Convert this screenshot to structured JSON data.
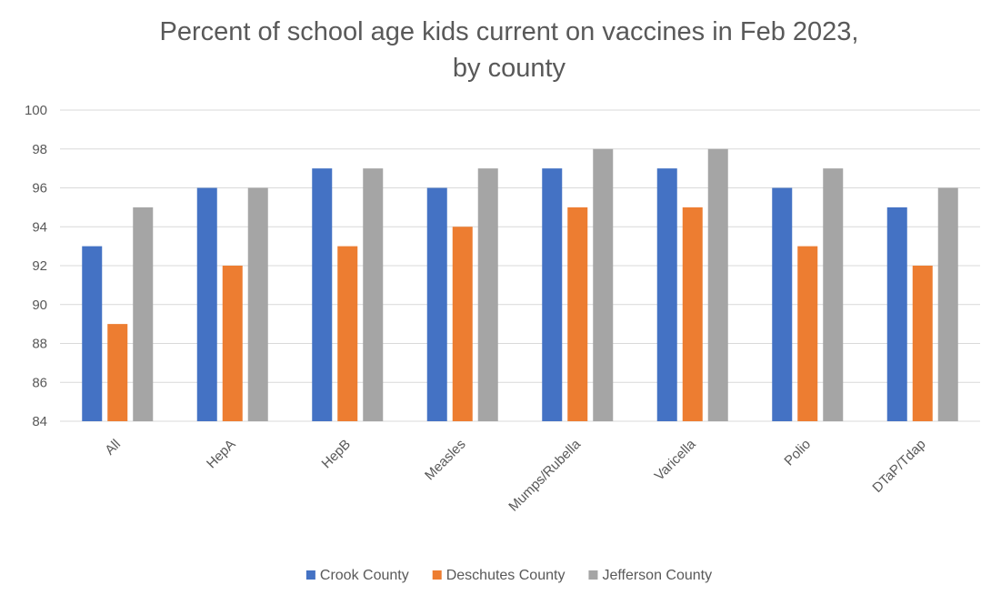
{
  "chart_data": {
    "type": "bar",
    "title_lines": [
      "Percent of school age kids current on vaccines in Feb 2023,",
      "by county"
    ],
    "categories": [
      "All",
      "HepA",
      "HepB",
      "Measles",
      "Mumps/Rubella",
      "Varicella",
      "Polio",
      "DTaP/Tdap"
    ],
    "series": [
      {
        "name": "Crook County",
        "color": "#4472C4",
        "values": [
          93,
          96,
          97,
          96,
          97,
          97,
          96,
          95
        ]
      },
      {
        "name": "Deschutes County",
        "color": "#ED7D31",
        "values": [
          89,
          92,
          93,
          94,
          95,
          95,
          93,
          92
        ]
      },
      {
        "name": "Jefferson County",
        "color": "#A5A5A5",
        "values": [
          95,
          96,
          97,
          97,
          98,
          98,
          97,
          96
        ]
      }
    ],
    "ylim": [
      84,
      100
    ],
    "y_ticks": [
      84,
      86,
      88,
      90,
      92,
      94,
      96,
      98,
      100
    ],
    "grid": true,
    "legend_position": "bottom",
    "x_tick_rotation": "-45deg"
  }
}
